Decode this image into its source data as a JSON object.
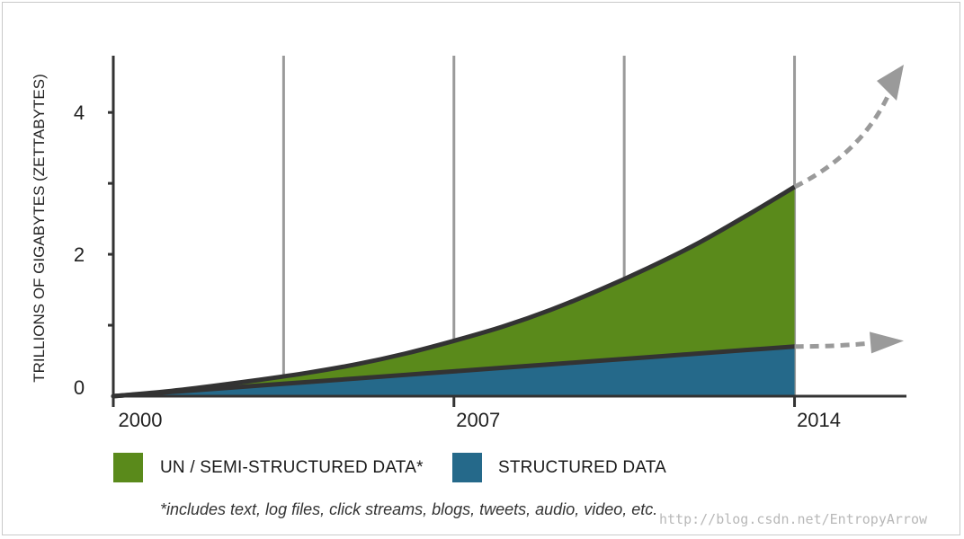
{
  "chart_data": {
    "type": "area",
    "ylabel": "TRILLIONS OF GIGABYTES (ZETTABYTES)",
    "xlabel": "",
    "x_ticks": [
      "2000",
      "2007",
      "2014"
    ],
    "y_ticks": [
      "0",
      "2",
      "4"
    ],
    "xlim": [
      2000,
      2016.3
    ],
    "ylim": [
      0,
      4.8
    ],
    "grid": "vertical",
    "stacked": true,
    "x": [
      2000,
      2001,
      2002,
      2003,
      2004,
      2005,
      2006,
      2007,
      2008,
      2009,
      2010,
      2011,
      2012,
      2013,
      2014
    ],
    "series": [
      {
        "name": "STRUCTURED DATA",
        "color": "#25698a",
        "values": [
          0.0,
          0.05,
          0.1,
          0.15,
          0.2,
          0.25,
          0.3,
          0.35,
          0.4,
          0.45,
          0.5,
          0.55,
          0.6,
          0.65,
          0.7
        ]
      },
      {
        "name": "UN / SEMI-STRUCTURED DATA*",
        "color": "#5a8a1b",
        "total": [
          0.0,
          0.06,
          0.14,
          0.23,
          0.33,
          0.45,
          0.6,
          0.78,
          0.98,
          1.22,
          1.5,
          1.81,
          2.15,
          2.54,
          2.95
        ]
      }
    ],
    "projection_arrows": "dashed gray arrows extend both curves past 2014"
  },
  "legend": {
    "items": [
      {
        "label": "UN / SEMI-STRUCTURED DATA*",
        "color": "#5a8a1b"
      },
      {
        "label": "STRUCTURED DATA",
        "color": "#25698a"
      }
    ]
  },
  "footnote": "*includes text, log files, click streams, blogs, tweets, audio, video, etc.",
  "watermark": "http://blog.csdn.net/EntropyArrow"
}
